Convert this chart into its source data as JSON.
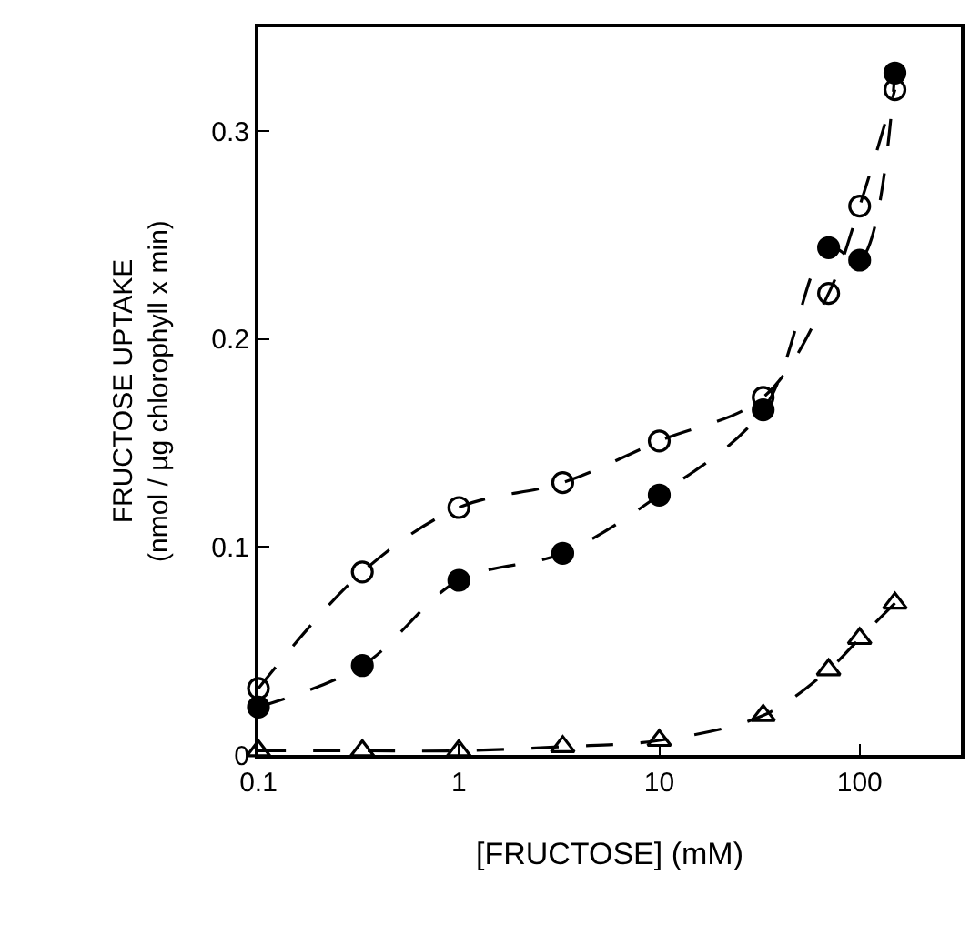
{
  "chart_data": {
    "type": "line",
    "xlabel": "[FRUCTOSE] (mM)",
    "ylabel": "FRUCTOSE UPTAKE\n(nmol / µg chlorophyll x min)",
    "x": [
      0.1,
      0.33,
      1,
      3.3,
      10,
      33,
      70,
      100,
      150
    ],
    "series": [
      {
        "color": "#000000",
        "marker": "circle-open",
        "values": [
          0.032,
          0.088,
          0.119,
          0.131,
          0.151,
          0.172,
          0.222,
          0.264,
          0.32
        ]
      },
      {
        "color": "#000000",
        "marker": "circle",
        "values": [
          0.023,
          0.043,
          0.084,
          0.097,
          0.125,
          0.166,
          0.244,
          0.238,
          0.328
        ]
      },
      {
        "color": "#000000",
        "marker": "triangle-open",
        "values": [
          0.002,
          0.002,
          0.002,
          0.004,
          0.007,
          0.019,
          0.041,
          0.056,
          0.073
        ]
      }
    ],
    "log": "x",
    "xlim": [
      0.1,
      320
    ],
    "xticks": [
      0.1,
      1,
      10,
      100
    ],
    "ylim": [
      0,
      0.35
    ],
    "yticks": [
      0,
      0.1,
      0.2,
      0.3
    ],
    "line_style": "dashed"
  }
}
